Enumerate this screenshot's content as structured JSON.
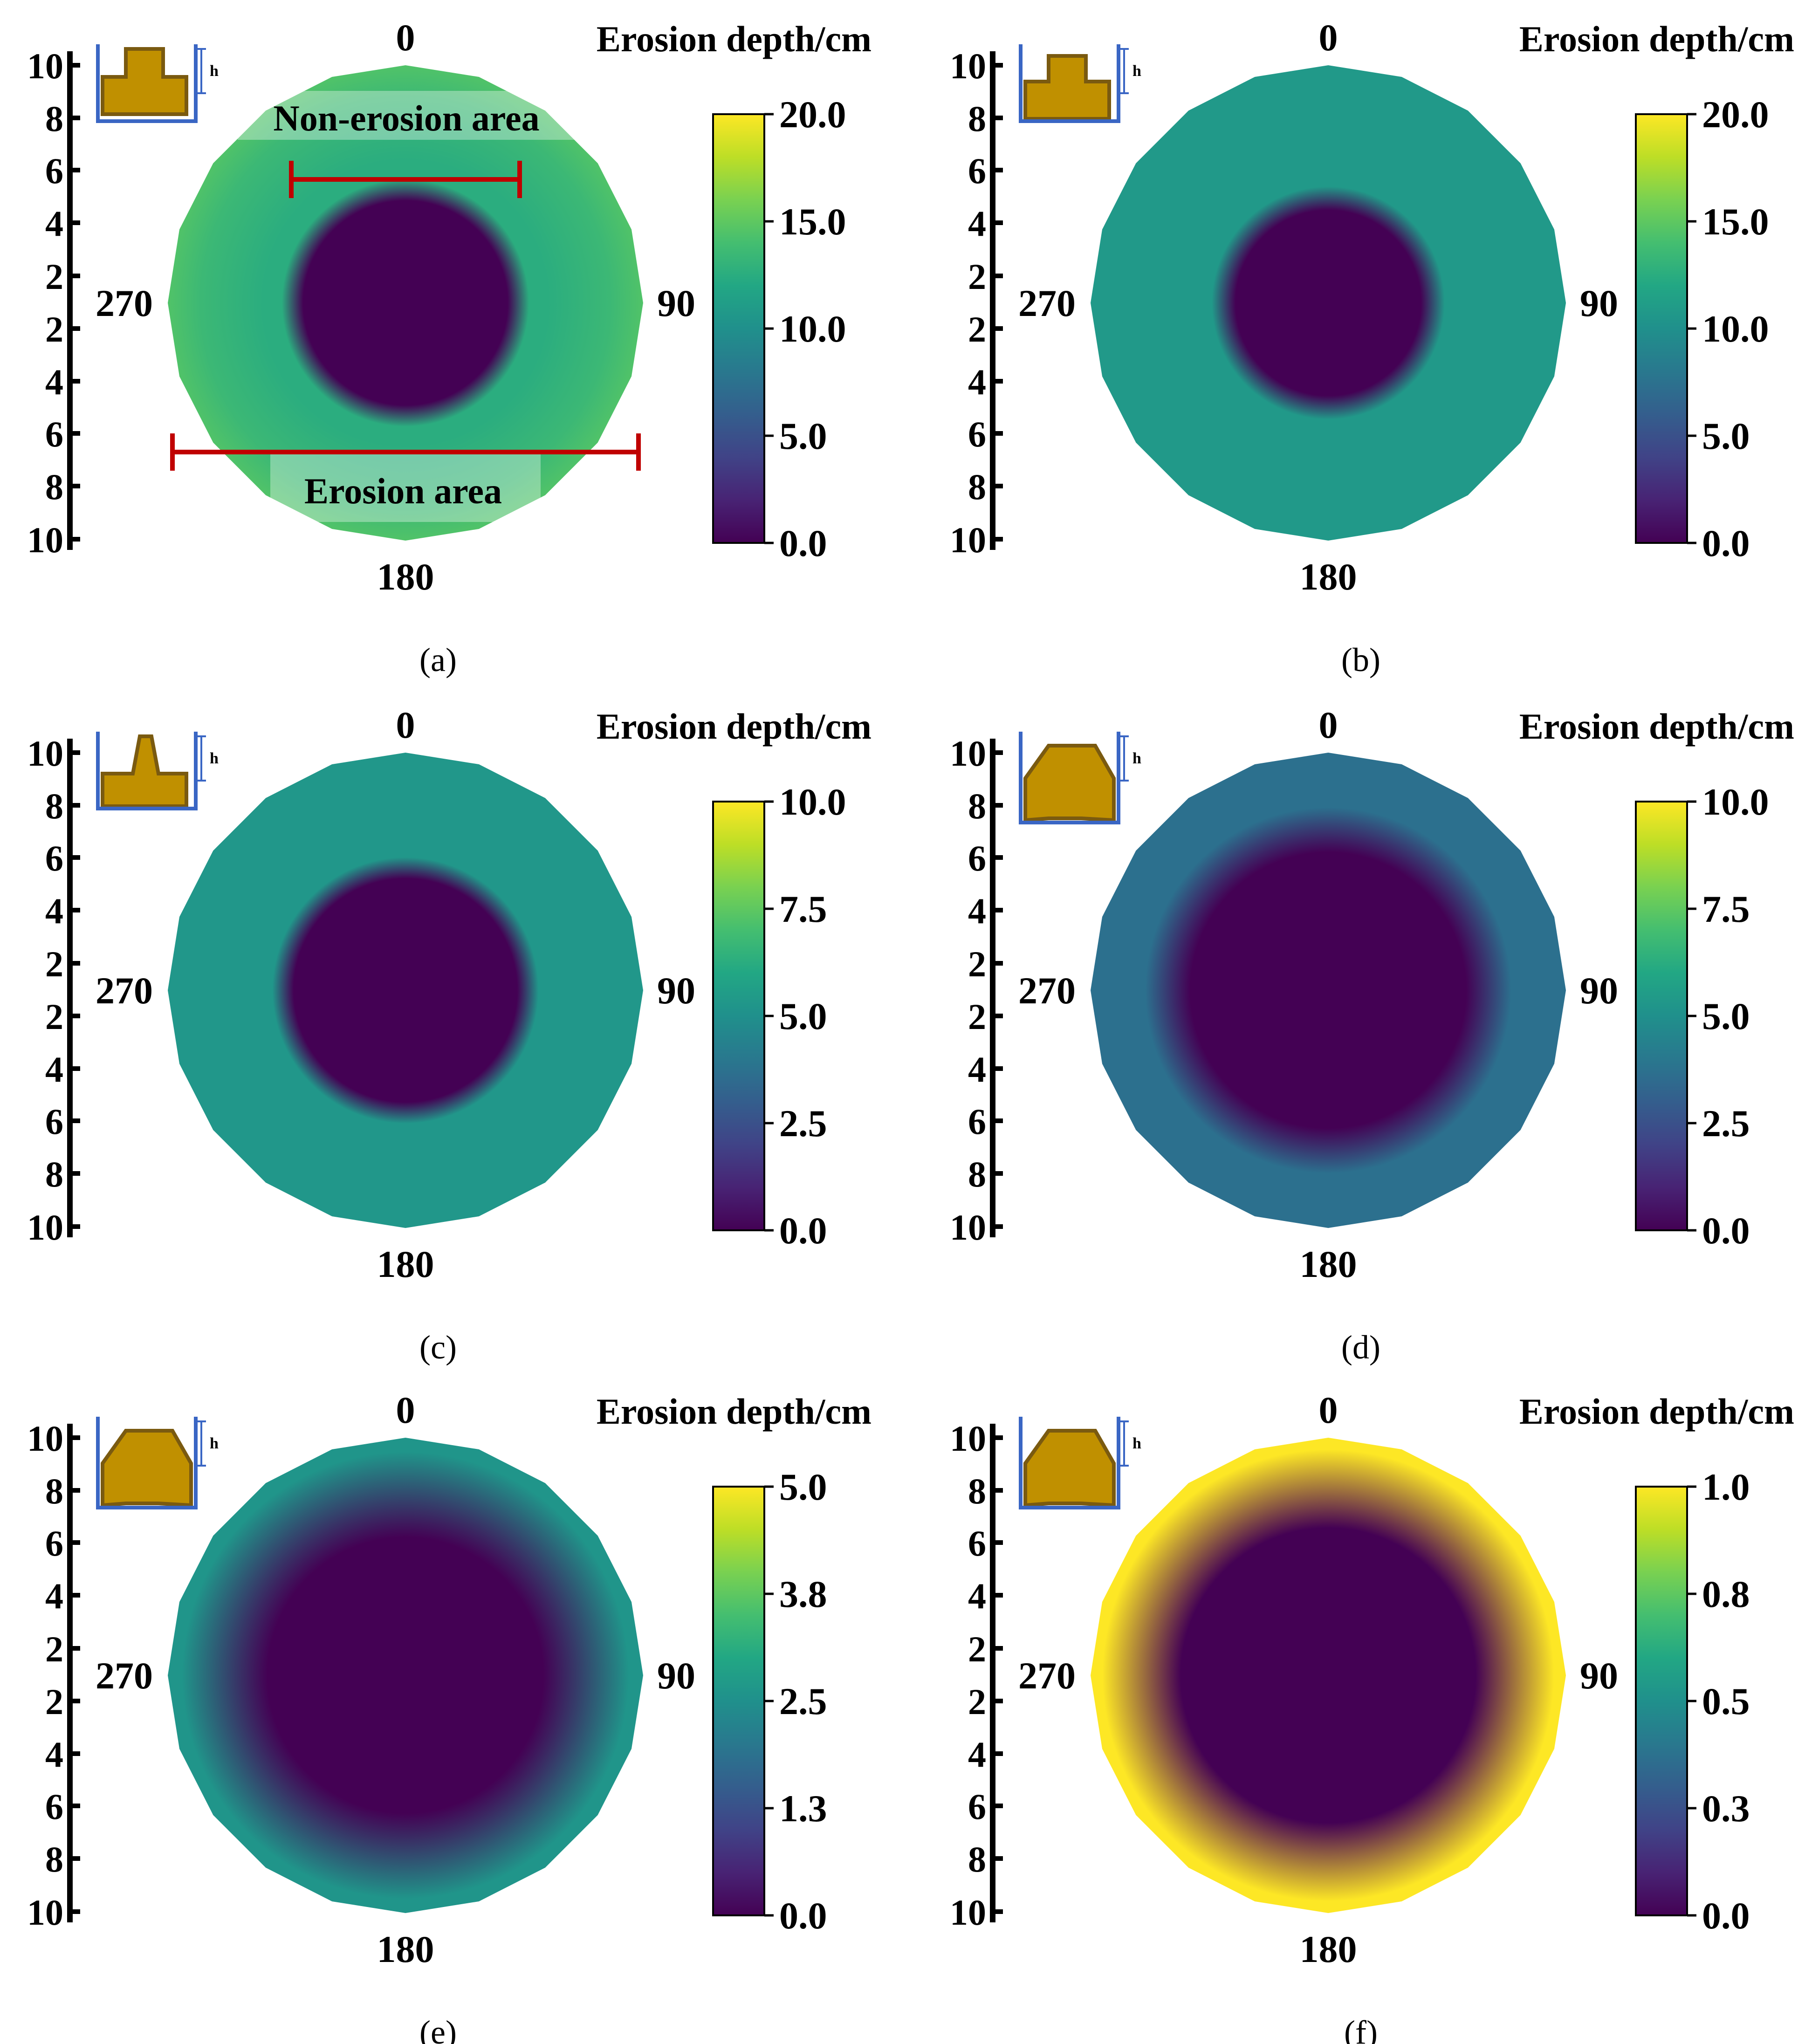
{
  "chart_data": [
    {
      "type": "polar-heatmap",
      "panel_label": "(a)",
      "title": "Erosion depth/cm",
      "colormap": "viridis",
      "colorbar_range": [
        0,
        20
      ],
      "colorbar_ticks": [
        "0.0",
        "5.0",
        "10.0",
        "15.0",
        "20.0"
      ],
      "angle_labels": [
        "0",
        "90",
        "180",
        "270"
      ],
      "radial_ticks_top": [
        "10",
        "8",
        "6",
        "4",
        "2"
      ],
      "radial_ticks_bottom": [
        "2",
        "4",
        "6",
        "8",
        "10"
      ],
      "radius_max": 10,
      "center_zero_radius": 4.3,
      "transition_width": 0.9,
      "rings": [
        {
          "r": 6.0,
          "value": 12.5
        },
        {
          "r": 8.6,
          "value": 13.5
        },
        {
          "r": 10.0,
          "value": 14.5
        }
      ],
      "structure_shape": "stepped-pier",
      "annotations": {
        "inner": "Non-erosion area",
        "outer": "Erosion area"
      }
    },
    {
      "type": "polar-heatmap",
      "panel_label": "(b)",
      "title": "Erosion depth/cm",
      "colormap": "viridis",
      "colorbar_range": [
        0,
        20
      ],
      "colorbar_ticks": [
        "0.0",
        "5.0",
        "10.0",
        "15.0",
        "20.0"
      ],
      "angle_labels": [
        "0",
        "90",
        "180",
        "270"
      ],
      "radial_ticks_top": [
        "10",
        "8",
        "6",
        "4",
        "2"
      ],
      "radial_ticks_bottom": [
        "2",
        "4",
        "6",
        "8",
        "10"
      ],
      "radius_max": 10,
      "center_zero_radius": 3.9,
      "transition_width": 1.0,
      "rings": [
        {
          "r": 10.0,
          "value": 10.8
        }
      ],
      "structure_shape": "stepped-pier-low"
    },
    {
      "type": "polar-heatmap",
      "panel_label": "(c)",
      "title": "Erosion depth/cm",
      "colormap": "viridis",
      "colorbar_range": [
        0,
        10
      ],
      "colorbar_ticks": [
        "0.0",
        "2.5",
        "5.0",
        "7.5",
        "10.0"
      ],
      "angle_labels": [
        "0",
        "90",
        "180",
        "270"
      ],
      "radial_ticks_top": [
        "10",
        "8",
        "6",
        "4",
        "2"
      ],
      "radial_ticks_bottom": [
        "2",
        "4",
        "6",
        "8",
        "10"
      ],
      "radius_max": 10,
      "center_zero_radius": 4.7,
      "transition_width": 0.9,
      "rings": [
        {
          "r": 10.0,
          "value": 5.3
        }
      ],
      "structure_shape": "narrow-pier"
    },
    {
      "type": "polar-heatmap",
      "panel_label": "(d)",
      "title": "Erosion depth/cm",
      "colormap": "viridis",
      "colorbar_range": [
        0,
        10
      ],
      "colorbar_ticks": [
        "0.0",
        "2.5",
        "5.0",
        "7.5",
        "10.0"
      ],
      "angle_labels": [
        "0",
        "90",
        "180",
        "270"
      ],
      "radial_ticks_top": [
        "10",
        "8",
        "6",
        "4",
        "2"
      ],
      "radial_ticks_bottom": [
        "2",
        "4",
        "6",
        "8",
        "10"
      ],
      "radius_max": 10,
      "center_zero_radius": 5.8,
      "transition_width": 1.9,
      "rings": [
        {
          "r": 10.0,
          "value": 3.7
        }
      ],
      "structure_shape": "chamfered-block"
    },
    {
      "type": "polar-heatmap",
      "panel_label": "(e)",
      "title": "Erosion depth/cm",
      "colormap": "viridis",
      "colorbar_range": [
        0,
        5
      ],
      "colorbar_ticks": [
        "0.0",
        "1.3",
        "2.5",
        "3.8",
        "5.0"
      ],
      "angle_labels": [
        "0",
        "90",
        "180",
        "270"
      ],
      "radial_ticks_top": [
        "10",
        "8",
        "6",
        "4",
        "2"
      ],
      "radial_ticks_bottom": [
        "2",
        "4",
        "6",
        "8",
        "10"
      ],
      "radius_max": 10,
      "center_zero_radius": 5.8,
      "transition_width": 3.6,
      "rings": [
        {
          "r": 10.0,
          "value": 2.6
        }
      ],
      "structure_shape": "chamfered-block"
    },
    {
      "type": "polar-heatmap",
      "panel_label": "(f)",
      "title": "Erosion depth/cm",
      "colormap": "viridis",
      "colorbar_range": [
        0,
        1
      ],
      "colorbar_ticks": [
        "0.0",
        "0.3",
        "0.5",
        "0.8",
        "1.0"
      ],
      "angle_labels": [
        "0",
        "90",
        "180",
        "270"
      ],
      "radial_ticks_top": [
        "10",
        "8",
        "6",
        "4",
        "2"
      ],
      "radial_ticks_bottom": [
        "2",
        "4",
        "6",
        "8",
        "10"
      ],
      "radius_max": 10,
      "center_zero_radius": 6.2,
      "transition_width": 3.3,
      "rings": [
        {
          "r": 10.0,
          "value": 1.0
        }
      ],
      "structure_shape": "chamfered-block"
    }
  ]
}
